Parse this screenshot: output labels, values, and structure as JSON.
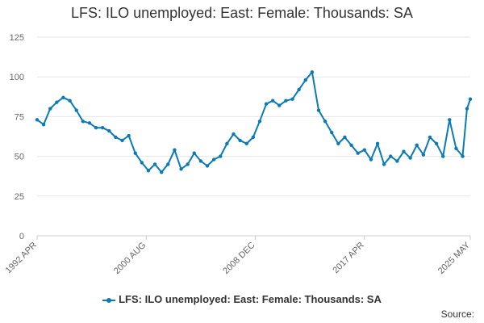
{
  "chart_data": {
    "type": "line",
    "title": "LFS: ILO unemployed: East: Female: Thousands: SA",
    "xlabel": "",
    "ylabel": "",
    "ylim": [
      0,
      125
    ],
    "yticks": [
      0,
      25,
      50,
      75,
      100,
      125
    ],
    "xticks": [
      "1992 APR",
      "2000 AUG",
      "2008 DEC",
      "2017 APR",
      "2025 MAY"
    ],
    "grid": true,
    "legend_position": "bottom",
    "series": [
      {
        "name": "LFS: ILO unemployed: East: Female: Thousands: SA",
        "color": "#0a7bb6",
        "x": [
          "1992-04",
          "1992-10",
          "1993-04",
          "1993-10",
          "1994-04",
          "1994-10",
          "1995-04",
          "1995-10",
          "1996-04",
          "1996-10",
          "1997-04",
          "1997-10",
          "1998-04",
          "1998-10",
          "1999-04",
          "1999-10",
          "2000-04",
          "2000-10",
          "2001-04",
          "2001-10",
          "2002-04",
          "2002-10",
          "2003-04",
          "2003-10",
          "2004-04",
          "2004-10",
          "2005-04",
          "2005-10",
          "2006-04",
          "2006-10",
          "2007-04",
          "2007-10",
          "2008-04",
          "2008-10",
          "2009-04",
          "2009-10",
          "2010-04",
          "2010-10",
          "2011-04",
          "2011-10",
          "2012-04",
          "2012-10",
          "2013-04",
          "2013-10",
          "2014-04",
          "2014-10",
          "2015-04",
          "2015-10",
          "2016-04",
          "2016-10",
          "2017-04",
          "2017-10",
          "2018-04",
          "2018-10",
          "2019-04",
          "2019-10",
          "2020-04",
          "2020-10",
          "2021-04",
          "2021-10",
          "2022-04",
          "2022-10",
          "2023-04",
          "2023-10",
          "2024-04",
          "2024-10",
          "2025-02",
          "2025-05"
        ],
        "values": [
          73,
          70,
          80,
          84,
          87,
          85,
          79,
          72,
          71,
          68,
          68,
          66,
          62,
          60,
          63,
          52,
          46,
          41,
          45,
          40,
          45,
          54,
          42,
          45,
          52,
          47,
          44,
          48,
          50,
          58,
          64,
          60,
          58,
          62,
          72,
          83,
          85,
          82,
          85,
          86,
          92,
          98,
          103,
          79,
          72,
          65,
          58,
          62,
          57,
          52,
          54,
          48,
          58,
          45,
          50,
          47,
          53,
          49,
          57,
          51,
          62,
          58,
          50,
          73,
          55,
          50,
          80,
          86
        ]
      }
    ]
  },
  "source_label": "Source:"
}
